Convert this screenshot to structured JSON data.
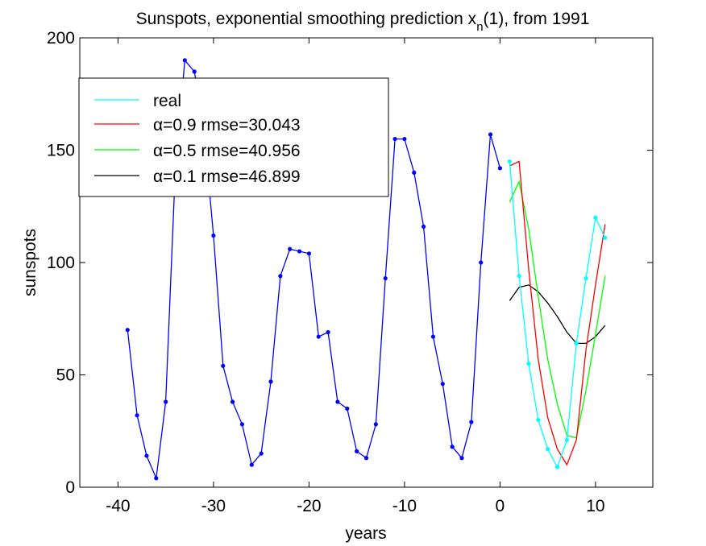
{
  "chart_data": {
    "type": "line",
    "title_prefix": "Sunspots, exponential smoothing prediction x",
    "title_sub": "n",
    "title_suffix": "(1), from 1991",
    "xlabel": "years",
    "ylabel": "sunspots",
    "xlim": [
      -44,
      16
    ],
    "ylim": [
      0,
      200
    ],
    "xticks": [
      -40,
      -30,
      -20,
      -10,
      0,
      10
    ],
    "yticks": [
      0,
      50,
      100,
      150,
      200
    ],
    "grid": false,
    "legend_position": "top-left",
    "history": {
      "color": "#0000ff",
      "x": [
        -39,
        -38,
        -37,
        -36,
        -35,
        -34,
        -33,
        -32,
        -31,
        -30,
        -29,
        -28,
        -27,
        -26,
        -25,
        -24,
        -23,
        -22,
        -21,
        -20,
        -19,
        -18,
        -17,
        -16,
        -15,
        -14,
        -13,
        -12,
        -11,
        -10,
        -9,
        -8,
        -7,
        -6,
        -5,
        -4,
        -3,
        -2,
        -1,
        0
      ],
      "y": [
        70,
        32,
        14,
        4,
        38,
        141,
        190,
        185,
        159,
        112,
        54,
        38,
        28,
        10,
        15,
        47,
        94,
        106,
        105,
        104,
        67,
        69,
        38,
        35,
        16,
        13,
        28,
        93,
        155,
        155,
        140,
        116,
        67,
        46,
        18,
        13,
        29,
        100,
        157,
        142
      ]
    },
    "series": [
      {
        "name": "real",
        "color": "#00ffff",
        "markers": true,
        "x": [
          1,
          2,
          3,
          4,
          5,
          6,
          7,
          8,
          9,
          10,
          11
        ],
        "y": [
          145,
          94,
          55,
          30,
          17,
          9,
          21,
          64,
          93,
          120,
          111
        ]
      },
      {
        "name": "α=0.9 rmse=30.043",
        "color": "#ff0000",
        "markers": false,
        "x": [
          1,
          2,
          3,
          4,
          5,
          6,
          7,
          8,
          9,
          10,
          11
        ],
        "y": [
          143,
          145,
          97,
          57,
          31,
          17,
          10,
          21,
          61,
          90,
          117
        ]
      },
      {
        "name": "α=0.5 rmse=40.956",
        "color": "#00ff00",
        "markers": false,
        "x": [
          1,
          2,
          3,
          4,
          5,
          6,
          7,
          8,
          9,
          10,
          11
        ],
        "y": [
          127,
          136,
          115,
          85,
          57,
          37,
          23,
          22,
          43,
          68,
          94
        ]
      },
      {
        "name": "α=0.1 rmse=46.899",
        "color": "#000000",
        "markers": false,
        "x": [
          1,
          2,
          3,
          4,
          5,
          6,
          7,
          8,
          9,
          10,
          11
        ],
        "y": [
          83,
          89,
          90,
          87,
          82,
          76,
          69,
          64,
          64,
          67,
          72
        ]
      }
    ]
  }
}
